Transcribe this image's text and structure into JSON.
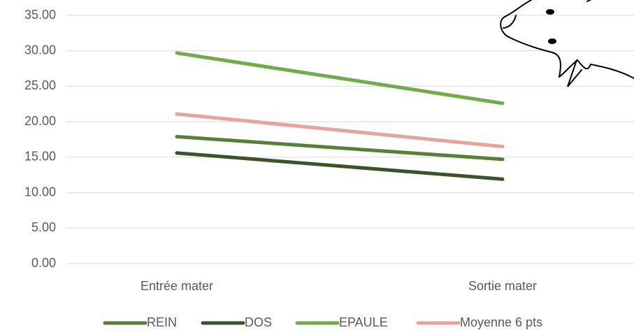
{
  "chart_data": {
    "type": "line",
    "categories": [
      "Entrée mater",
      "Sortie mater"
    ],
    "series": [
      {
        "name": "REIN",
        "color": "#548235",
        "values": [
          17.9,
          14.7
        ]
      },
      {
        "name": "DOS",
        "color": "#3b5327",
        "values": [
          15.6,
          11.9
        ]
      },
      {
        "name": "EPAULE",
        "color": "#70ad47",
        "values": [
          29.7,
          22.6
        ]
      },
      {
        "name": "Moyenne 6 pts",
        "color": "#e8a29b",
        "values": [
          21.1,
          16.5
        ]
      }
    ],
    "ylim": [
      0,
      35
    ],
    "yticks": [
      {
        "value": 0,
        "label": "0.00"
      },
      {
        "value": 5,
        "label": "5.00"
      },
      {
        "value": 10,
        "label": "10.00"
      },
      {
        "value": 15,
        "label": "15.00"
      },
      {
        "value": 20,
        "label": "20.00"
      },
      {
        "value": 25,
        "label": "25.00"
      },
      {
        "value": 30,
        "label": "30.00"
      },
      {
        "value": 35,
        "label": "35.00"
      }
    ],
    "grid": true,
    "legend": "bottom"
  }
}
